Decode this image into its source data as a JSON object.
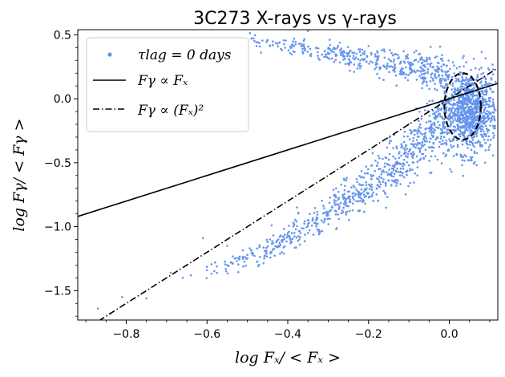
{
  "chart_data": {
    "type": "scatter",
    "title": "3C273    X-rays vs γ-rays",
    "xlabel": "log Fₓ/ < Fₓ >",
    "ylabel": "log Fγ/ < Fγ >",
    "xlim": [
      -0.92,
      0.12
    ],
    "ylim": [
      -1.73,
      0.54
    ],
    "xticks": [
      -0.8,
      -0.6,
      -0.4,
      -0.2,
      0.0
    ],
    "xtick_labels": [
      "−0.8",
      "−0.6",
      "−0.4",
      "−0.2",
      "0.0"
    ],
    "yticks": [
      -1.5,
      -1.0,
      -0.5,
      0.0,
      0.5
    ],
    "ytick_labels": [
      "−1.5",
      "−1.0",
      "−0.5",
      "0.0",
      "0.5"
    ],
    "legend_position": "top-left",
    "colors": {
      "scatter": "#6495ed",
      "lines": "#000000"
    },
    "series": [
      {
        "name": "τlag = 0  days",
        "kind": "scatter",
        "points": [
          [
            -0.87,
            -1.64
          ],
          [
            -0.84,
            -1.68
          ],
          [
            -0.81,
            -1.55
          ],
          [
            -0.75,
            -1.56
          ],
          [
            -0.69,
            -1.36
          ],
          [
            -0.66,
            -1.4
          ],
          [
            -0.64,
            -1.38
          ],
          [
            -0.6,
            -1.34
          ],
          [
            -0.58,
            -1.28
          ],
          [
            -0.55,
            -1.3
          ],
          [
            -0.52,
            -1.24
          ],
          [
            -0.5,
            -1.22
          ],
          [
            -0.47,
            -1.16
          ],
          [
            -0.45,
            -1.12
          ],
          [
            -0.42,
            -1.08
          ],
          [
            -0.4,
            -1.05
          ],
          [
            -0.38,
            -1.02
          ],
          [
            -0.35,
            -0.98
          ],
          [
            -0.33,
            -0.95
          ],
          [
            -0.3,
            -0.91
          ],
          [
            -0.28,
            -0.88
          ],
          [
            -0.25,
            -0.84
          ],
          [
            -0.23,
            -0.8
          ],
          [
            -0.2,
            -0.74
          ],
          [
            -0.18,
            -0.7
          ],
          [
            -0.15,
            -0.64
          ],
          [
            -0.12,
            -0.57
          ],
          [
            -0.1,
            -0.52
          ],
          [
            -0.08,
            -0.45
          ],
          [
            -0.05,
            -0.38
          ],
          [
            -0.03,
            -0.3
          ],
          [
            -0.01,
            -0.22
          ],
          [
            -0.61,
            -1.09
          ],
          [
            -0.55,
            -1.15
          ],
          [
            -0.52,
            -1.25
          ],
          [
            -0.44,
            -1.2
          ],
          [
            -0.41,
            -1.21
          ],
          [
            -0.37,
            -1.14
          ],
          [
            -0.49,
            0.47
          ],
          [
            -0.45,
            0.46
          ],
          [
            -0.42,
            0.44
          ],
          [
            -0.39,
            0.42
          ],
          [
            -0.36,
            0.41
          ],
          [
            -0.33,
            0.4
          ],
          [
            -0.3,
            0.39
          ],
          [
            -0.27,
            0.38
          ],
          [
            -0.24,
            0.36
          ],
          [
            -0.21,
            0.35
          ],
          [
            -0.18,
            0.33
          ],
          [
            -0.15,
            0.31
          ],
          [
            -0.12,
            0.29
          ],
          [
            -0.09,
            0.27
          ],
          [
            -0.06,
            0.25
          ],
          [
            -0.03,
            0.23
          ],
          [
            -0.01,
            0.21
          ],
          [
            -0.35,
            0.53
          ]
        ],
        "dense_region": {
          "x_center": 0.05,
          "y_center": -0.1,
          "x_spread": 0.035,
          "y_spread": 0.16,
          "count": 1000
        },
        "upper_arm": {
          "x_from": -0.5,
          "x_to": 0.0,
          "y_from": 0.46,
          "y_to": 0.2,
          "count": 400
        },
        "lower_arm": {
          "x_from": -0.62,
          "x_to": 0.0,
          "y_from": -1.35,
          "y_to": -0.15,
          "count": 700
        }
      },
      {
        "name": "Fγ ∝ Fₓ",
        "kind": "line",
        "style": "solid",
        "slope": 1,
        "intercept": 0.0,
        "x_range": [
          -0.92,
          0.12
        ]
      },
      {
        "name": "Fγ ∝ (Fₓ)²",
        "kind": "line",
        "style": "dashdot",
        "slope": 2,
        "intercept": 0.0,
        "x_range": [
          -0.92,
          0.12
        ]
      }
    ],
    "ellipse": {
      "style": "dashed",
      "x_center": 0.033,
      "y_center": -0.06,
      "x_radius": 0.045,
      "y_radius": 0.26,
      "color": "#000000"
    }
  }
}
